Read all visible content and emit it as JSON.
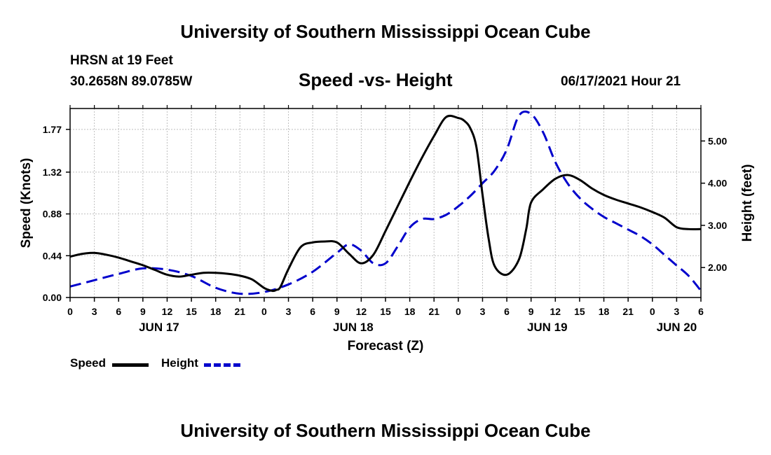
{
  "header": {
    "title": "University of Southern Mississippi Ocean Cube",
    "station": "HRSN at 19 Feet",
    "coords": "30.2658N  89.0785W",
    "subtitle": "Speed -vs- Height",
    "timestamp": "06/17/2021 Hour 21"
  },
  "footer": {
    "title": "University of Southern Mississippi Ocean Cube"
  },
  "legend": {
    "speed_label": "Speed",
    "height_label": "Height"
  },
  "colors": {
    "speed": "#000000",
    "height": "#0000cc",
    "grid": "#bfbfbf"
  },
  "chart_data": {
    "type": "line",
    "title": "Speed -vs- Height",
    "xlabel": "Forecast (Z)",
    "ylabel": "Speed (Knots)",
    "y2label": "Height (feet)",
    "grid": true,
    "legend_position": "bottom-left",
    "xlim": [
      0,
      78
    ],
    "ylim": [
      0,
      1.99
    ],
    "y2lim": [
      1.29,
      5.77
    ],
    "x_ticks": [
      0,
      3,
      6,
      9,
      12,
      15,
      18,
      21,
      24,
      27,
      30,
      33,
      36,
      39,
      42,
      45,
      48,
      51,
      54,
      57,
      60,
      63,
      66,
      69,
      72,
      75,
      78
    ],
    "x_tick_labels": [
      "0",
      "3",
      "6",
      "9",
      "12",
      "15",
      "18",
      "21",
      "0",
      "3",
      "6",
      "9",
      "12",
      "15",
      "18",
      "21",
      "0",
      "3",
      "6",
      "9",
      "12",
      "15",
      "18",
      "21",
      "0",
      "3",
      "6"
    ],
    "day_labels": [
      {
        "x": 11,
        "label": "JUN 17"
      },
      {
        "x": 35,
        "label": "JUN 18"
      },
      {
        "x": 59,
        "label": "JUN 19"
      },
      {
        "x": 75,
        "label": "JUN 20"
      }
    ],
    "y_ticks": [
      0.0,
      0.44,
      0.88,
      1.32,
      1.77
    ],
    "y_tick_labels": [
      "0.00",
      "0.44",
      "0.88",
      "1.32",
      "1.77"
    ],
    "y2_ticks": [
      2.0,
      3.0,
      4.0,
      5.0
    ],
    "y2_tick_labels": [
      "2.00",
      "3.00",
      "4.00",
      "5.00"
    ],
    "series": [
      {
        "name": "Speed",
        "axis": "left",
        "x": [
          0,
          1.5,
          3,
          4.5,
          6,
          7.5,
          9,
          10.5,
          12,
          13.5,
          15,
          16.5,
          18,
          19.5,
          21,
          22.5,
          24,
          25,
          25.5,
          26,
          27,
          28.5,
          30,
          31.5,
          33,
          34.5,
          36,
          37.5,
          39,
          40.5,
          42,
          43.5,
          45,
          46.5,
          48,
          48.75,
          49.5,
          50.25,
          51,
          51.75,
          52.5,
          54,
          55.5,
          56.4,
          57,
          58.5,
          60,
          61.5,
          63,
          64.5,
          66,
          67.5,
          69,
          70.5,
          72,
          73.5,
          75,
          76.5,
          78
        ],
        "values": [
          0.43,
          0.46,
          0.47,
          0.45,
          0.42,
          0.38,
          0.34,
          0.29,
          0.24,
          0.22,
          0.24,
          0.26,
          0.26,
          0.25,
          0.23,
          0.19,
          0.1,
          0.07,
          0.08,
          0.11,
          0.3,
          0.53,
          0.58,
          0.59,
          0.58,
          0.46,
          0.36,
          0.45,
          0.7,
          0.96,
          1.22,
          1.47,
          1.7,
          1.9,
          1.89,
          1.86,
          1.78,
          1.58,
          1.08,
          0.62,
          0.33,
          0.24,
          0.4,
          0.72,
          1.0,
          1.14,
          1.25,
          1.29,
          1.24,
          1.15,
          1.08,
          1.03,
          0.99,
          0.95,
          0.9,
          0.84,
          0.74,
          0.72,
          0.72
        ]
      },
      {
        "name": "Height",
        "axis": "right",
        "x": [
          0,
          3,
          6,
          9,
          12,
          15,
          18,
          21,
          24,
          27,
          30,
          33,
          34.5,
          36,
          37.5,
          39,
          40.5,
          42,
          43.5,
          45,
          46.5,
          48,
          49.5,
          51,
          52.5,
          54,
          55.5,
          57,
          58.5,
          60,
          61.5,
          63,
          64.5,
          66,
          67.5,
          69,
          70.5,
          72,
          73.5,
          75,
          76.5,
          78
        ],
        "values": [
          1.55,
          1.7,
          1.85,
          1.98,
          1.95,
          1.8,
          1.52,
          1.38,
          1.42,
          1.6,
          1.9,
          2.35,
          2.55,
          2.4,
          2.1,
          2.1,
          2.5,
          2.95,
          3.15,
          3.15,
          3.25,
          3.45,
          3.7,
          4.0,
          4.3,
          4.8,
          5.6,
          5.64,
          5.2,
          4.5,
          4.0,
          3.65,
          3.4,
          3.2,
          3.05,
          2.9,
          2.75,
          2.55,
          2.3,
          2.05,
          1.8,
          1.45
        ]
      }
    ]
  }
}
